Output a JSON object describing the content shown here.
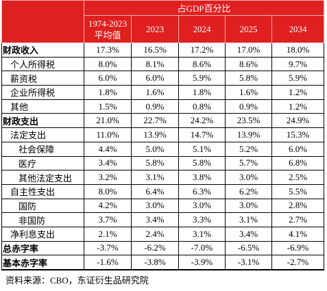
{
  "header": {
    "group": "占GDP百分比",
    "columns": [
      [
        "1974-2023",
        "平均值"
      ],
      [
        "2023"
      ],
      [
        "2024"
      ],
      [
        "2025"
      ],
      [
        "2034"
      ]
    ]
  },
  "rows": [
    {
      "label": "财政收入",
      "values": [
        "17.3%",
        "16.5%",
        "17.2%",
        "17.0%",
        "18.0%"
      ]
    },
    {
      "label": "个人所得税",
      "values": [
        "8.0%",
        "8.1%",
        "8.6%",
        "8.6%",
        "9.7%"
      ]
    },
    {
      "label": "薪资税",
      "values": [
        "6.0%",
        "6.0%",
        "5.9%",
        "5.8%",
        "5.9%"
      ]
    },
    {
      "label": "企业所得税",
      "values": [
        "1.8%",
        "1.6%",
        "1.8%",
        "1.6%",
        "1.2%"
      ]
    },
    {
      "label": "其他",
      "values": [
        "1.5%",
        "0.9%",
        "0.8%",
        "0.9%",
        "1.2%"
      ]
    },
    {
      "label": "财政支出",
      "values": [
        "21.0%",
        "22.7%",
        "24.2%",
        "23.5%",
        "24.9%"
      ]
    },
    {
      "label": "法定支出",
      "values": [
        "11.0%",
        "13.9%",
        "14.7%",
        "13.9%",
        "15.3%"
      ]
    },
    {
      "label": "社会保障",
      "values": [
        "4.4%",
        "5.0%",
        "5.1%",
        "5.2%",
        "6.0%"
      ]
    },
    {
      "label": "医疗",
      "values": [
        "3.4%",
        "5.8%",
        "5.8%",
        "5.7%",
        "6.8%"
      ]
    },
    {
      "label": "其他法定支出",
      "values": [
        "3.2%",
        "3.1%",
        "3.8%",
        "3.0%",
        "2.5%"
      ]
    },
    {
      "label": "自主性支出",
      "values": [
        "8.0%",
        "6.4%",
        "6.3%",
        "6.2%",
        "5.5%"
      ]
    },
    {
      "label": "国防",
      "values": [
        "4.2%",
        "3.0%",
        "3.0%",
        "3.0%",
        "2.8%"
      ]
    },
    {
      "label": "非国防",
      "values": [
        "3.7%",
        "3.4%",
        "3.3%",
        "3.1%",
        "2.7%"
      ]
    },
    {
      "label": "净利息支出",
      "values": [
        "2.1%",
        "2.4%",
        "3.1%",
        "3.4%",
        "4.1%"
      ]
    },
    {
      "label": "总赤字率",
      "values": [
        "-3.7%",
        "-6.2%",
        "-7.0%",
        "-6.5%",
        "-6.9%"
      ]
    },
    {
      "label": "基本赤字率",
      "values": [
        "-1.6%",
        "-3.8%",
        "-3.9%",
        "-3.1%",
        "-2.7%"
      ]
    }
  ],
  "footnote": "资料来源：CBO，东证衍生品研究院"
}
